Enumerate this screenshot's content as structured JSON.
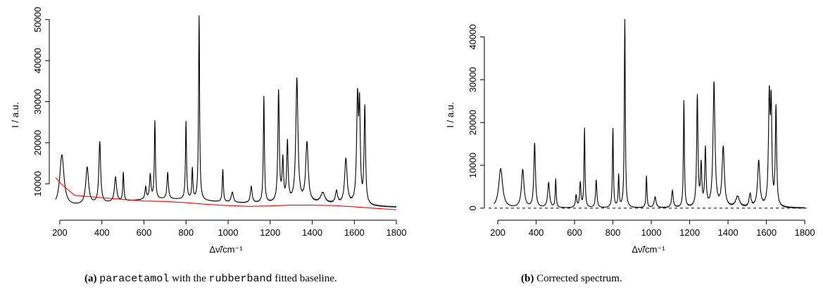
{
  "chart_data": [
    {
      "type": "line",
      "panel": "a",
      "xlabel": "Δν̃/cm⁻¹",
      "ylabel": "I / a.u.",
      "xlim": [
        150,
        1830
      ],
      "ylim": [
        2500,
        51000
      ],
      "xticks": [
        "200",
        "400",
        "600",
        "800",
        "1000",
        "1200",
        "1400",
        "1600",
        "1800"
      ],
      "yticks": [
        "10000",
        "20000",
        "30000",
        "40000",
        "50000"
      ],
      "caption": {
        "label": "(a)",
        "term1": "paracetamol",
        "mid": " with the ",
        "term2": "rubberband",
        "end": " fitted baseline."
      },
      "baseline": 3800,
      "series": [
        {
          "color": "#000000",
          "peaks": [
            [
              210,
              12500,
              12
            ],
            [
              330,
              9000,
              8
            ],
            [
              390,
              15000,
              5
            ],
            [
              465,
              6000,
              6
            ],
            [
              502,
              7000,
              3
            ],
            [
              608,
              3000,
              4
            ],
            [
              630,
              6000,
              4
            ],
            [
              652,
              19000,
              3
            ],
            [
              713,
              6500,
              4
            ],
            [
              800,
              19000,
              3
            ],
            [
              830,
              7500,
              3
            ],
            [
              862,
              45000,
              3
            ],
            [
              975,
              8000,
              3
            ],
            [
              1020,
              2500,
              6
            ],
            [
              1110,
              4000,
              5
            ],
            [
              1170,
              26000,
              3
            ],
            [
              1240,
              27000,
              4
            ],
            [
              1260,
              10000,
              4
            ],
            [
              1282,
              14500,
              4
            ],
            [
              1327,
              30000,
              6
            ],
            [
              1375,
              14500,
              7
            ],
            [
              1450,
              2500,
              12
            ],
            [
              1515,
              3000,
              6
            ],
            [
              1560,
              11000,
              7
            ],
            [
              1615,
              25000,
              5
            ],
            [
              1625,
              22000,
              4
            ],
            [
              1650,
              23500,
              4
            ]
          ]
        },
        {
          "color": "#ff0000",
          "x": [
            180,
            210,
            270,
            380,
            500,
            600,
            700,
            800,
            900,
            1000,
            1100,
            1200,
            1300,
            1400,
            1500,
            1600,
            1700,
            1800
          ],
          "y": [
            11500,
            9800,
            7200,
            6700,
            6200,
            5800,
            5700,
            5400,
            5000,
            4700,
            4500,
            4600,
            4800,
            4800,
            4700,
            4400,
            4000,
            3700
          ]
        }
      ]
    },
    {
      "type": "line",
      "panel": "b",
      "xlabel": "Δν̃/cm⁻¹",
      "ylabel": "I / a.u.",
      "xlim": [
        130,
        1840
      ],
      "ylim": [
        -1500,
        45000
      ],
      "xticks": [
        "200",
        "400",
        "600",
        "800",
        "1000",
        "1200",
        "1400",
        "1600",
        "1800"
      ],
      "yticks": [
        "0",
        "10000",
        "20000",
        "30000",
        "40000"
      ],
      "reference_line": 0,
      "caption": {
        "label": "(b)",
        "text": " Corrected spectrum."
      },
      "baseline": 0,
      "series": [
        {
          "color": "#000000",
          "peaks": [
            [
              215,
              9200,
              12
            ],
            [
              330,
              8800,
              8
            ],
            [
              392,
              15000,
              5
            ],
            [
              465,
              5800,
              6
            ],
            [
              502,
              6700,
              3
            ],
            [
              608,
              2900,
              4
            ],
            [
              630,
              5800,
              4
            ],
            [
              652,
              18500,
              3
            ],
            [
              713,
              6500,
              4
            ],
            [
              800,
              18500,
              3
            ],
            [
              830,
              7500,
              3
            ],
            [
              862,
              44000,
              3
            ],
            [
              975,
              7500,
              3
            ],
            [
              1020,
              2500,
              6
            ],
            [
              1110,
              4000,
              5
            ],
            [
              1170,
              25000,
              3
            ],
            [
              1240,
              26000,
              4
            ],
            [
              1260,
              9500,
              4
            ],
            [
              1282,
              13500,
              4
            ],
            [
              1327,
              29000,
              6
            ],
            [
              1375,
              14000,
              7
            ],
            [
              1450,
              2500,
              12
            ],
            [
              1515,
              3000,
              6
            ],
            [
              1560,
              10800,
              7
            ],
            [
              1615,
              25000,
              5
            ],
            [
              1625,
              22000,
              4
            ],
            [
              1650,
              23000,
              4
            ]
          ]
        }
      ]
    }
  ]
}
